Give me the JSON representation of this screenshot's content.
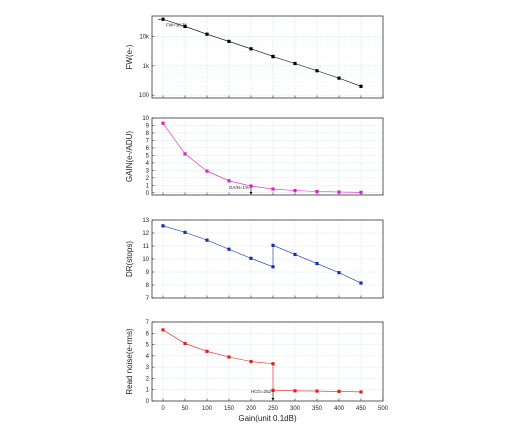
{
  "chart_data": [
    {
      "type": "line",
      "ylabel": "FW(e-)",
      "yscale": "log",
      "ylim": [
        80,
        50000
      ],
      "yticks": [
        "100",
        "1k",
        "10k"
      ],
      "xlim": [
        -25,
        500
      ],
      "grid": true,
      "color": "#000000",
      "annotation": {
        "text": "FW=38.7K",
        "x": 0,
        "y": 38700
      },
      "series": [
        {
          "x": [
            0,
            50,
            100,
            150,
            200,
            250,
            250,
            300,
            350,
            400,
            450
          ],
          "y": [
            38700,
            22000,
            12000,
            6800,
            3800,
            2100,
            2050,
            1200,
            680,
            380,
            200
          ]
        }
      ]
    },
    {
      "type": "line",
      "ylabel": "GAIN(e-/ADU)",
      "ylim": [
        -0.3,
        10
      ],
      "yticks": [
        "0",
        "1",
        "2",
        "3",
        "4",
        "5",
        "6",
        "7",
        "8",
        "9",
        "10"
      ],
      "xlim": [
        -25,
        500
      ],
      "grid": true,
      "color": "#e020c8",
      "annotation": {
        "text": "GAIN=1%",
        "x": 200,
        "y": 0.75
      },
      "series": [
        {
          "x": [
            0,
            50,
            100,
            150,
            200,
            250,
            300,
            350,
            400,
            450
          ],
          "y": [
            9.3,
            5.2,
            2.9,
            1.6,
            0.9,
            0.5,
            0.3,
            0.17,
            0.1,
            0.06
          ]
        }
      ]
    },
    {
      "type": "line",
      "ylabel": "DR(stops)",
      "ylim": [
        7,
        13
      ],
      "yticks": [
        "7",
        "8",
        "9",
        "10",
        "11",
        "12",
        "13"
      ],
      "xlim": [
        -25,
        500
      ],
      "grid": true,
      "color": "#1830b0",
      "series": [
        {
          "x": [
            0,
            50,
            100,
            150,
            200,
            250,
            250,
            300,
            350,
            400,
            450
          ],
          "y": [
            12.55,
            12.05,
            11.45,
            10.75,
            10.05,
            9.4,
            11.05,
            10.35,
            9.65,
            8.95,
            8.15
          ]
        }
      ]
    },
    {
      "type": "line",
      "ylabel": "Read noise(e-rms)",
      "xlabel": "Gain(unit 0.1dB)",
      "ylim": [
        0,
        7
      ],
      "yticks": [
        "0",
        "1",
        "2",
        "3",
        "4",
        "5",
        "6",
        "7"
      ],
      "xlim": [
        -25,
        500
      ],
      "xticks": [
        "0",
        "50",
        "100",
        "150",
        "200",
        "250",
        "300",
        "350",
        "400",
        "450",
        "500"
      ],
      "grid": true,
      "color": "#e02020",
      "annotation": {
        "text": "HCG=252",
        "x": 250,
        "y": 0.9
      },
      "series": [
        {
          "x": [
            0,
            50,
            100,
            150,
            200,
            250,
            250,
            300,
            350,
            400,
            450
          ],
          "y": [
            6.3,
            5.1,
            4.4,
            3.9,
            3.5,
            3.3,
            0.95,
            0.9,
            0.88,
            0.85,
            0.8
          ]
        }
      ]
    }
  ]
}
